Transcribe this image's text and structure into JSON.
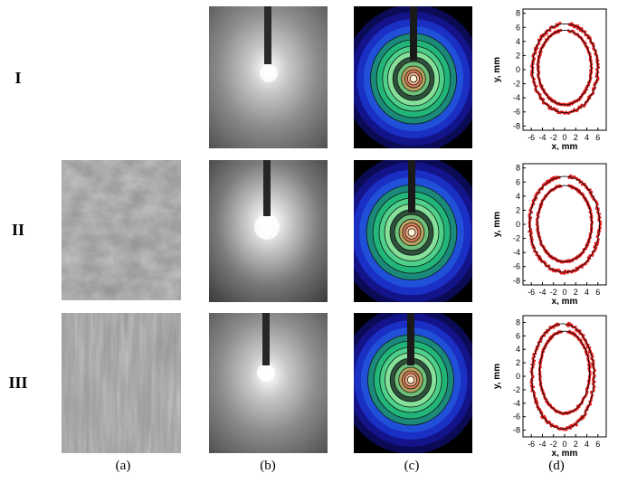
{
  "figure": {
    "row_labels": [
      "I",
      "II",
      "III"
    ],
    "column_labels": [
      "(a)",
      "(b)",
      "(c)",
      "(d)"
    ],
    "panel_a_row_I": "blank",
    "colors": {
      "measured_points": "#e02020",
      "fitted_circle": "#000000",
      "c_background": "#000000"
    }
  },
  "chart_data": [
    {
      "type": "scatter",
      "row": "I",
      "xlabel": "x, mm",
      "ylabel": "y, mm",
      "xlim": [
        -7.5,
        7.5
      ],
      "ylim": [
        -8.6,
        8.6
      ],
      "xticks": [
        "-6",
        "-4",
        "-2",
        "0",
        "2",
        "4",
        "6"
      ],
      "yticks": [
        "8",
        "6",
        "4",
        "2",
        "0",
        "-2",
        "-4",
        "-6",
        "-8"
      ],
      "series": [
        {
          "kind": "inner_ring",
          "cx": 0,
          "cy": 0.3,
          "rx": 4.8,
          "ry": 5.3
        },
        {
          "kind": "outer_ring",
          "cx": 0.1,
          "cy": 0.2,
          "rx": 5.9,
          "ry": 6.3
        }
      ]
    },
    {
      "type": "scatter",
      "row": "II",
      "xlabel": "x, mm",
      "ylabel": "y, mm",
      "xlim": [
        -7.5,
        7.5
      ],
      "ylim": [
        -8.6,
        8.6
      ],
      "xticks": [
        "-6",
        "-4",
        "-2",
        "0",
        "2",
        "4",
        "6"
      ],
      "yticks": [
        "8",
        "6",
        "4",
        "2",
        "0",
        "-2",
        "-4",
        "-6",
        "-8"
      ],
      "series": [
        {
          "kind": "inner_ring",
          "cx": 0,
          "cy": 0.1,
          "rx": 4.9,
          "ry": 5.4
        },
        {
          "kind": "outer_ring",
          "cx": 0,
          "cy": 0,
          "rx": 6.3,
          "ry": 6.8
        }
      ]
    },
    {
      "type": "scatter",
      "row": "III",
      "xlabel": "x, mm",
      "ylabel": "y, mm",
      "xlim": [
        -7.5,
        7.5
      ],
      "ylim": [
        -9,
        9
      ],
      "xticks": [
        "-6",
        "-4",
        "-2",
        "0",
        "2",
        "4",
        "6"
      ],
      "yticks": [
        "8",
        "6",
        "4",
        "2",
        "0",
        "-2",
        "-4",
        "-6",
        "-8"
      ],
      "series": [
        {
          "kind": "inner_ring",
          "cx": 0,
          "cy": 0.6,
          "rx": 4.5,
          "ry": 6.1
        },
        {
          "kind": "outer_ring",
          "cx": -0.3,
          "cy": 0,
          "rx": 5.6,
          "ry": 7.8
        }
      ]
    }
  ]
}
